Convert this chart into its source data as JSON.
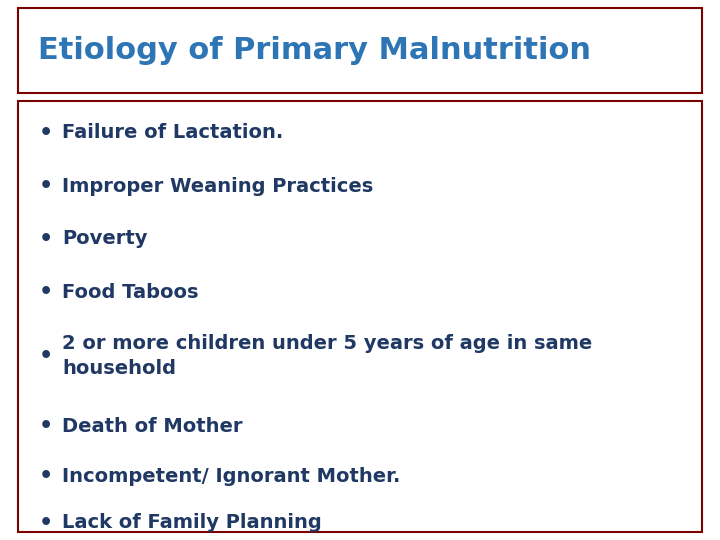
{
  "title": "Etiology of Primary Malnutrition",
  "title_color": "#2E75B6",
  "title_fontsize": 22,
  "bullet_items": [
    "Failure of Lactation.",
    "Improper Weaning Practices",
    "Poverty",
    "Food Taboos",
    "2 or more children under 5 years of age in same\nhousehold",
    "Death of Mother",
    "Incompetent/ Ignorant Mother.",
    "Lack of Family Planning"
  ],
  "bullet_color": "#1F3864",
  "bullet_fontsize": 14,
  "background_color": "#FFFFFF",
  "box_border_color": "#7B0000",
  "bullet_char": "•"
}
